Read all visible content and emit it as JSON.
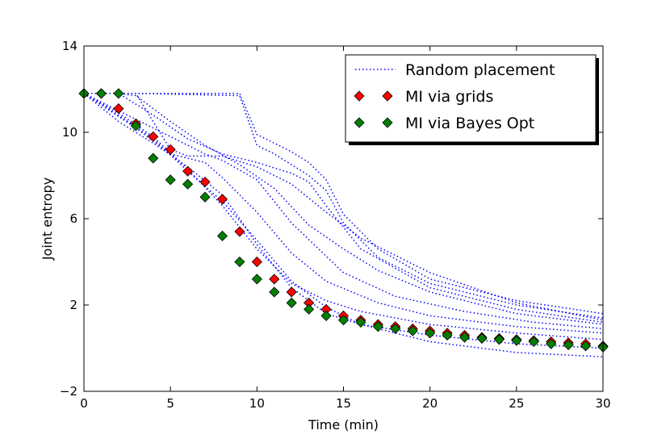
{
  "chart_data": {
    "type": "line",
    "title": "",
    "xlabel": "Time (min)",
    "ylabel": "Joint entropy",
    "xlim": [
      0,
      30
    ],
    "ylim": [
      -2,
      14
    ],
    "xticks": [
      0,
      5,
      10,
      15,
      20,
      25,
      30
    ],
    "yticks": [
      -2,
      2,
      6,
      10,
      14
    ],
    "xtick_labels": [
      "0",
      "5",
      "10",
      "15",
      "20",
      "25",
      "30"
    ],
    "ytick_labels": [
      "−2",
      "2",
      "6",
      "10",
      "14"
    ],
    "grid": false,
    "legend_position": "top-right",
    "legend": [
      {
        "label": "Random placement",
        "style": "dotted-line",
        "color": "#0000ff"
      },
      {
        "label": "MI via grids",
        "style": "diamond-marker",
        "color": "#ff0000"
      },
      {
        "label": "MI via Bayes Opt",
        "style": "diamond-marker",
        "color": "#008000"
      }
    ],
    "random_series": [
      {
        "name": "Random placement 1",
        "x": [
          0,
          9,
          10,
          11,
          12,
          13,
          14,
          15,
          17,
          20,
          25,
          30
        ],
        "y": [
          11.8,
          11.8,
          9.9,
          9.5,
          9.1,
          8.6,
          7.8,
          6.2,
          4.6,
          3.2,
          2.2,
          1.6
        ]
      },
      {
        "name": "Random placement 2",
        "x": [
          0,
          3,
          9,
          10,
          11,
          12,
          13,
          14,
          15,
          17,
          20,
          25,
          30
        ],
        "y": [
          11.8,
          11.8,
          11.7,
          9.4,
          9.0,
          8.5,
          8.0,
          7.3,
          5.8,
          4.2,
          3.0,
          2.0,
          1.4
        ]
      },
      {
        "name": "Random placement 3",
        "x": [
          0,
          2,
          4,
          6,
          8,
          10,
          12,
          13,
          14,
          16,
          20,
          25,
          30
        ],
        "y": [
          11.8,
          11.8,
          10.8,
          9.7,
          9.0,
          8.6,
          8.1,
          7.7,
          6.6,
          4.6,
          2.8,
          1.8,
          1.2
        ]
      },
      {
        "name": "Random placement 4",
        "x": [
          0,
          3,
          5,
          6,
          8,
          10,
          12,
          14,
          16,
          20,
          25,
          30
        ],
        "y": [
          11.8,
          11.8,
          9.2,
          8.9,
          8.9,
          8.4,
          7.6,
          6.3,
          5.1,
          3.5,
          2.1,
          1.3
        ]
      },
      {
        "name": "Random placement 5",
        "x": [
          0,
          2,
          3,
          5,
          7,
          9,
          11,
          13,
          15,
          17,
          20,
          25,
          30
        ],
        "y": [
          11.8,
          11.8,
          11.7,
          10.5,
          9.4,
          8.5,
          7.4,
          5.7,
          4.6,
          3.6,
          2.6,
          1.6,
          1.1
        ]
      },
      {
        "name": "Random placement 6",
        "x": [
          0,
          3,
          5,
          7,
          8,
          10,
          12,
          15,
          18,
          22,
          26,
          30
        ],
        "y": [
          11.8,
          10.6,
          9.8,
          9.0,
          8.7,
          7.8,
          5.8,
          3.5,
          2.4,
          1.7,
          1.2,
          0.9
        ]
      },
      {
        "name": "Random placement 7",
        "x": [
          0,
          3,
          5,
          6,
          7,
          8,
          10,
          12,
          14,
          17,
          20,
          25,
          30
        ],
        "y": [
          11.8,
          10.2,
          9.0,
          8.8,
          8.6,
          7.9,
          6.3,
          4.4,
          3.1,
          2.1,
          1.5,
          1.0,
          0.7
        ]
      },
      {
        "name": "Random placement 8",
        "x": [
          0,
          2,
          4,
          6,
          8,
          10,
          12,
          14,
          16,
          20,
          25,
          30
        ],
        "y": [
          11.8,
          10.9,
          9.8,
          8.3,
          6.6,
          4.6,
          3.0,
          2.2,
          1.7,
          1.1,
          0.7,
          0.4
        ]
      },
      {
        "name": "Random placement 9",
        "x": [
          0,
          2,
          4,
          6,
          8,
          9,
          10,
          12,
          14,
          16,
          20,
          25,
          30
        ],
        "y": [
          11.8,
          10.5,
          9.5,
          8.4,
          7.1,
          6.0,
          4.8,
          2.8,
          1.6,
          1.1,
          0.6,
          0.2,
          0.0
        ]
      },
      {
        "name": "Random placement 10",
        "x": [
          0,
          2,
          4,
          6,
          8,
          10,
          12,
          14,
          16,
          20,
          25,
          30
        ],
        "y": [
          11.8,
          10.8,
          9.7,
          8.2,
          6.8,
          5.0,
          3.1,
          1.9,
          1.1,
          0.3,
          -0.2,
          -0.4
        ]
      }
    ],
    "series": [
      {
        "name": "MI via grids",
        "color": "#ff0000",
        "x": [
          0,
          1,
          2,
          3,
          4,
          5,
          6,
          7,
          8,
          9,
          10,
          11,
          12,
          13,
          14,
          15,
          16,
          17,
          18,
          19,
          20,
          21,
          22,
          23,
          24,
          25,
          26,
          27,
          28,
          29,
          30
        ],
        "y": [
          11.8,
          11.8,
          11.1,
          10.4,
          9.8,
          9.2,
          8.2,
          7.7,
          6.9,
          5.4,
          4.0,
          3.2,
          2.6,
          2.1,
          1.8,
          1.5,
          1.3,
          1.1,
          1.0,
          0.9,
          0.8,
          0.7,
          0.6,
          0.5,
          0.45,
          0.4,
          0.35,
          0.3,
          0.25,
          0.2,
          0.1
        ]
      },
      {
        "name": "MI via Bayes Opt",
        "color": "#008000",
        "x": [
          0,
          1,
          2,
          3,
          4,
          5,
          6,
          7,
          8,
          9,
          10,
          11,
          12,
          13,
          14,
          15,
          16,
          17,
          18,
          19,
          20,
          21,
          22,
          23,
          24,
          25,
          26,
          27,
          28,
          29,
          30
        ],
        "y": [
          11.8,
          11.8,
          11.8,
          10.3,
          8.8,
          7.8,
          7.6,
          7.0,
          5.2,
          4.0,
          3.2,
          2.6,
          2.1,
          1.8,
          1.5,
          1.3,
          1.2,
          1.0,
          0.9,
          0.8,
          0.7,
          0.6,
          0.5,
          0.45,
          0.4,
          0.35,
          0.3,
          0.2,
          0.15,
          0.1,
          0.05
        ]
      }
    ]
  }
}
